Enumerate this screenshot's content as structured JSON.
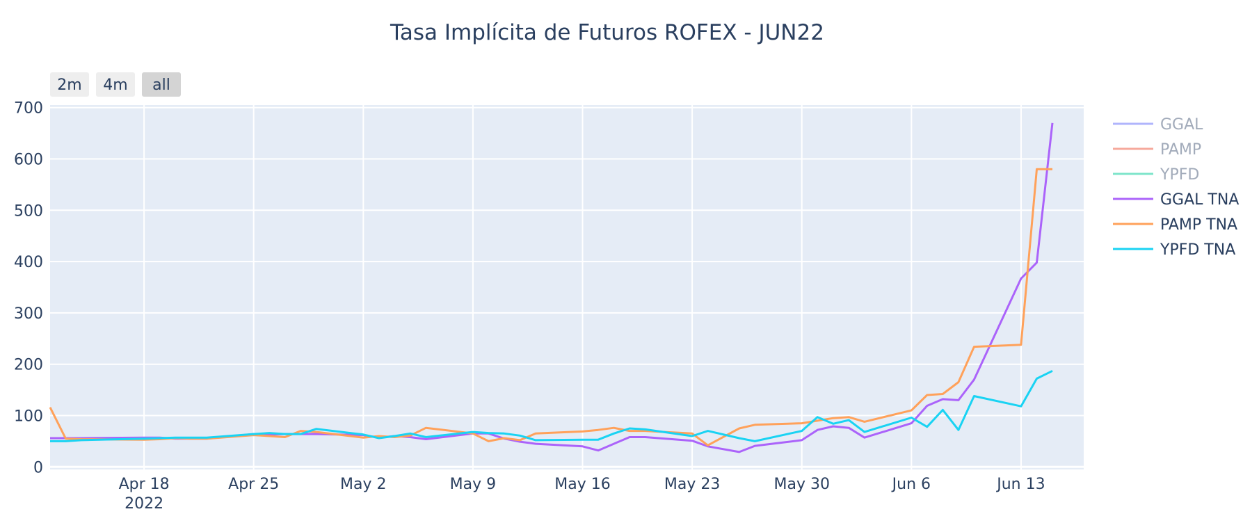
{
  "chart_data": {
    "type": "line",
    "title": "Tasa Implícita de Futuros ROFEX - JUN22",
    "xlabel": "",
    "ylabel": "",
    "x_range": [
      "2022-04-12",
      "2022-06-17"
    ],
    "ylim": [
      -5,
      705
    ],
    "y_ticks": [
      0,
      100,
      200,
      300,
      400,
      500,
      600,
      700
    ],
    "x_ticks": [
      {
        "date": "2022-04-18",
        "label": "Apr 18",
        "sublabel": "2022"
      },
      {
        "date": "2022-04-25",
        "label": "Apr 25"
      },
      {
        "date": "2022-05-02",
        "label": "May 2"
      },
      {
        "date": "2022-05-09",
        "label": "May 9"
      },
      {
        "date": "2022-05-16",
        "label": "May 16"
      },
      {
        "date": "2022-05-23",
        "label": "May 23"
      },
      {
        "date": "2022-05-30",
        "label": "May 30"
      },
      {
        "date": "2022-06-06",
        "label": "Jun 6"
      },
      {
        "date": "2022-06-13",
        "label": "Jun 13"
      }
    ],
    "grid": true,
    "background": "#e5ecf6",
    "legend_position": "right",
    "range_selector": [
      {
        "label": "2m",
        "active": false
      },
      {
        "label": "4m",
        "active": false
      },
      {
        "label": "all",
        "active": true
      }
    ],
    "series": [
      {
        "name": "GGAL",
        "color": "#636efa",
        "legend_only": true,
        "values": []
      },
      {
        "name": "PAMP",
        "color": "#ef553b",
        "legend_only": true,
        "values": []
      },
      {
        "name": "YPFD",
        "color": "#00cc96",
        "legend_only": true,
        "values": []
      },
      {
        "name": "GGAL TNA",
        "color": "#ab63fa",
        "legend_only": false,
        "x": [
          "2022-04-12",
          "2022-04-13",
          "2022-04-14",
          "2022-04-18",
          "2022-04-19",
          "2022-04-20",
          "2022-04-21",
          "2022-04-22",
          "2022-04-25",
          "2022-04-26",
          "2022-04-27",
          "2022-04-28",
          "2022-04-29",
          "2022-05-02",
          "2022-05-03",
          "2022-05-04",
          "2022-05-05",
          "2022-05-06",
          "2022-05-09",
          "2022-05-10",
          "2022-05-11",
          "2022-05-12",
          "2022-05-13",
          "2022-05-16",
          "2022-05-17",
          "2022-05-18",
          "2022-05-19",
          "2022-05-20",
          "2022-05-23",
          "2022-05-24",
          "2022-05-26",
          "2022-05-27",
          "2022-05-30",
          "2022-05-31",
          "2022-06-01",
          "2022-06-02",
          "2022-06-03",
          "2022-06-06",
          "2022-06-07",
          "2022-06-08",
          "2022-06-09",
          "2022-06-10",
          "2022-06-13",
          "2022-06-14",
          "2022-06-15"
        ],
        "values": [
          56,
          56,
          56,
          57,
          57,
          55,
          55,
          55,
          64,
          63,
          64,
          64,
          64,
          62,
          57,
          60,
          58,
          54,
          65,
          65,
          55,
          49,
          45,
          40,
          32,
          45,
          58,
          58,
          51,
          40,
          29,
          41,
          52,
          72,
          79,
          76,
          57,
          85,
          119,
          132,
          130,
          170,
          367,
          398,
          670
        ]
      },
      {
        "name": "PAMP TNA",
        "color": "#ffa15a",
        "legend_only": false,
        "x": [
          "2022-04-12",
          "2022-04-13",
          "2022-04-14",
          "2022-04-18",
          "2022-04-19",
          "2022-04-20",
          "2022-04-21",
          "2022-04-22",
          "2022-04-25",
          "2022-04-26",
          "2022-04-27",
          "2022-04-28",
          "2022-04-29",
          "2022-05-02",
          "2022-05-03",
          "2022-05-04",
          "2022-05-05",
          "2022-05-06",
          "2022-05-09",
          "2022-05-10",
          "2022-05-11",
          "2022-05-12",
          "2022-05-13",
          "2022-05-16",
          "2022-05-17",
          "2022-05-18",
          "2022-05-19",
          "2022-05-20",
          "2022-05-23",
          "2022-05-24",
          "2022-05-26",
          "2022-05-27",
          "2022-05-30",
          "2022-05-31",
          "2022-06-01",
          "2022-06-02",
          "2022-06-03",
          "2022-06-06",
          "2022-06-07",
          "2022-06-08",
          "2022-06-09",
          "2022-06-10",
          "2022-06-13",
          "2022-06-14",
          "2022-06-15"
        ],
        "values": [
          116,
          55,
          54,
          53,
          54,
          56,
          55,
          55,
          62,
          60,
          58,
          70,
          68,
          57,
          60,
          58,
          61,
          76,
          65,
          50,
          56,
          52,
          65,
          69,
          72,
          76,
          70,
          70,
          65,
          42,
          75,
          82,
          85,
          90,
          95,
          97,
          88,
          110,
          140,
          142,
          165,
          234,
          238,
          580,
          580
        ]
      },
      {
        "name": "YPFD TNA",
        "color": "#19d3f3",
        "legend_only": false,
        "x": [
          "2022-04-12",
          "2022-04-13",
          "2022-04-14",
          "2022-04-18",
          "2022-04-19",
          "2022-04-20",
          "2022-04-21",
          "2022-04-22",
          "2022-04-25",
          "2022-04-26",
          "2022-04-27",
          "2022-04-28",
          "2022-04-29",
          "2022-05-02",
          "2022-05-03",
          "2022-05-04",
          "2022-05-05",
          "2022-05-06",
          "2022-05-09",
          "2022-05-10",
          "2022-05-11",
          "2022-05-12",
          "2022-05-13",
          "2022-05-16",
          "2022-05-17",
          "2022-05-18",
          "2022-05-19",
          "2022-05-20",
          "2022-05-23",
          "2022-05-24",
          "2022-05-26",
          "2022-05-27",
          "2022-05-30",
          "2022-05-31",
          "2022-06-01",
          "2022-06-02",
          "2022-06-03",
          "2022-06-06",
          "2022-06-07",
          "2022-06-08",
          "2022-06-09",
          "2022-06-10",
          "2022-06-13",
          "2022-06-14",
          "2022-06-15"
        ],
        "values": [
          50,
          50,
          52,
          55,
          56,
          57,
          57,
          57,
          64,
          66,
          64,
          64,
          74,
          63,
          56,
          60,
          65,
          58,
          68,
          66,
          65,
          61,
          52,
          53,
          53,
          65,
          75,
          73,
          60,
          70,
          56,
          50,
          70,
          97,
          84,
          91,
          68,
          96,
          78,
          111,
          72,
          138,
          118,
          172,
          187
        ]
      }
    ]
  }
}
